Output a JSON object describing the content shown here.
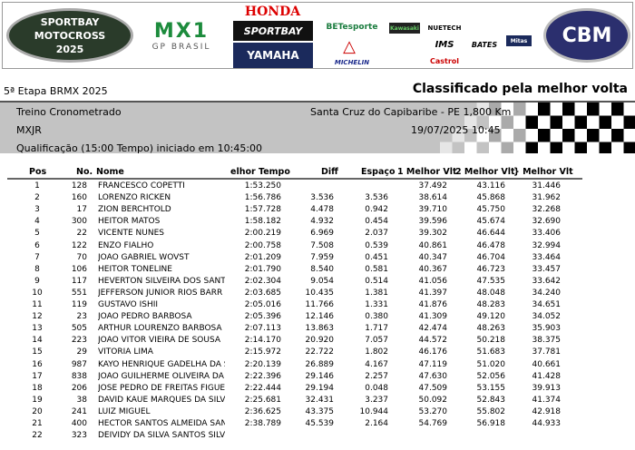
{
  "banner": {
    "logos": [
      {
        "id": "motocross",
        "text": "SPORTBAY MOTOCROSS 2025"
      },
      {
        "id": "mx1",
        "text": "MX1",
        "sub": "GP BRASIL"
      },
      {
        "id": "honda",
        "text": "HONDA"
      },
      {
        "id": "sportbay",
        "text": "SPORTBAY"
      },
      {
        "id": "yamaha",
        "text": "YAMAHA"
      },
      {
        "id": "betesporte",
        "text": "BETesporte"
      },
      {
        "id": "michelin",
        "text": "MICHELIN"
      },
      {
        "id": "kawasaki",
        "text": "Kawasaki"
      },
      {
        "id": "nuetech",
        "text": "NUETECH"
      },
      {
        "id": "ims",
        "text": "IMS"
      },
      {
        "id": "castrol",
        "text": "Castrol"
      },
      {
        "id": "bates",
        "text": "BATES"
      },
      {
        "id": "mitas",
        "text": "Mitas"
      },
      {
        "id": "cbm",
        "text": "CBM"
      }
    ]
  },
  "event": "5ª Etapa BRMX 2025",
  "report_title": "Classificado pela melhor volta",
  "info": {
    "session": "Treino Cronometrado",
    "location": "Santa Cruz do Capibaribe - PE 1,800 Km",
    "category": "MXJR",
    "datetime": "19/07/2025 10:45",
    "qualification": "Qualificação (15:00 Tempo) iniciado em 10:45:00"
  },
  "columns": {
    "pos": "Pos",
    "no": "No.",
    "name": "Nome",
    "best": "elhor Tempo",
    "diff": "Diff",
    "gap": "Espaço",
    "l1": "1 Melhor Vlt",
    "l2": "2 Melhor Vlt",
    "l3": "} Melhor Vlt"
  },
  "rows": [
    {
      "pos": "1",
      "no": "128",
      "name": "FRANCESCO COPETTI",
      "best": "1:53.250",
      "diff": "",
      "gap": "",
      "l1": "37.492",
      "l2": "43.116",
      "l3": "31.446"
    },
    {
      "pos": "2",
      "no": "160",
      "name": "LORENZO RICKEN",
      "best": "1:56.786",
      "diff": "3.536",
      "gap": "3.536",
      "l1": "38.614",
      "l2": "45.868",
      "l3": "31.962"
    },
    {
      "pos": "3",
      "no": "17",
      "name": "ZION BERCHTOLD",
      "best": "1:57.728",
      "diff": "4.478",
      "gap": "0.942",
      "l1": "39.710",
      "l2": "45.750",
      "l3": "32.268"
    },
    {
      "pos": "4",
      "no": "300",
      "name": "HEITOR  MATOS",
      "best": "1:58.182",
      "diff": "4.932",
      "gap": "0.454",
      "l1": "39.596",
      "l2": "45.674",
      "l3": "32.690"
    },
    {
      "pos": "5",
      "no": "22",
      "name": "VICENTE NUNES",
      "best": "2:00.219",
      "diff": "6.969",
      "gap": "2.037",
      "l1": "39.302",
      "l2": "46.644",
      "l3": "33.406"
    },
    {
      "pos": "6",
      "no": "122",
      "name": "ENZO FIALHO",
      "best": "2:00.758",
      "diff": "7.508",
      "gap": "0.539",
      "l1": "40.861",
      "l2": "46.478",
      "l3": "32.994"
    },
    {
      "pos": "7",
      "no": "70",
      "name": "JOÃO GABRIEL WOVST",
      "best": "2:01.209",
      "diff": "7.959",
      "gap": "0.451",
      "l1": "40.347",
      "l2": "46.704",
      "l3": "33.464"
    },
    {
      "pos": "8",
      "no": "106",
      "name": "HEITOR TONELINE",
      "best": "2:01.790",
      "diff": "8.540",
      "gap": "0.581",
      "l1": "40.367",
      "l2": "46.723",
      "l3": "33.457"
    },
    {
      "pos": "9",
      "no": "117",
      "name": "HEVERTON SILVEIRA DOS SANT",
      "best": "2:02.304",
      "diff": "9.054",
      "gap": "0.514",
      "l1": "41.056",
      "l2": "47.535",
      "l3": "33.642"
    },
    {
      "pos": "10",
      "no": "551",
      "name": "JEFFERSON JÚNIOR RIOS BARR",
      "best": "2:03.685",
      "diff": "10.435",
      "gap": "1.381",
      "l1": "41.397",
      "l2": "48.048",
      "l3": "34.240"
    },
    {
      "pos": "11",
      "no": "119",
      "name": "GUSTAVO ISHII",
      "best": "2:05.016",
      "diff": "11.766",
      "gap": "1.331",
      "l1": "41.876",
      "l2": "48.283",
      "l3": "34.651"
    },
    {
      "pos": "12",
      "no": "23",
      "name": "JOÃO PEDRO BARBOSA",
      "best": "2:05.396",
      "diff": "12.146",
      "gap": "0.380",
      "l1": "41.309",
      "l2": "49.120",
      "l3": "34.052"
    },
    {
      "pos": "13",
      "no": "505",
      "name": "ARTHUR LOURENZO BARBOSA F",
      "best": "2:07.113",
      "diff": "13.863",
      "gap": "1.717",
      "l1": "42.474",
      "l2": "48.263",
      "l3": "35.903"
    },
    {
      "pos": "14",
      "no": "223",
      "name": "JOÃO VITOR VIEIRA DE SOUSA",
      "best": "2:14.170",
      "diff": "20.920",
      "gap": "7.057",
      "l1": "44.572",
      "l2": "50.218",
      "l3": "38.375"
    },
    {
      "pos": "15",
      "no": "29",
      "name": "VITÓRIA LIMA",
      "best": "2:15.972",
      "diff": "22.722",
      "gap": "1.802",
      "l1": "46.176",
      "l2": "51.683",
      "l3": "37.781"
    },
    {
      "pos": "16",
      "no": "987",
      "name": "KAYO HENRIQUE GADELHA DA S",
      "best": "2:20.139",
      "diff": "26.889",
      "gap": "4.167",
      "l1": "47.119",
      "l2": "51.020",
      "l3": "40.661"
    },
    {
      "pos": "17",
      "no": "838",
      "name": "JOÃO GUILHERME OLIVEIRA DA",
      "best": "2:22.396",
      "diff": "29.146",
      "gap": "2.257",
      "l1": "47.630",
      "l2": "52.056",
      "l3": "41.428"
    },
    {
      "pos": "18",
      "no": "206",
      "name": "JOSÉ PEDRO DE FREITAS FIGUE",
      "best": "2:22.444",
      "diff": "29.194",
      "gap": "0.048",
      "l1": "47.509",
      "l2": "53.155",
      "l3": "39.913"
    },
    {
      "pos": "19",
      "no": "38",
      "name": "DAVID KAUE MARQUES DA SILV",
      "best": "2:25.681",
      "diff": "32.431",
      "gap": "3.237",
      "l1": "50.092",
      "l2": "52.843",
      "l3": "41.374"
    },
    {
      "pos": "20",
      "no": "241",
      "name": "LUIZ MIGUEL",
      "best": "2:36.625",
      "diff": "43.375",
      "gap": "10.944",
      "l1": "53.270",
      "l2": "55.802",
      "l3": "42.918"
    },
    {
      "pos": "21",
      "no": "400",
      "name": "HECTOR SANTOS ALMEIDA SAN",
      "best": "2:38.789",
      "diff": "45.539",
      "gap": "2.164",
      "l1": "54.769",
      "l2": "56.918",
      "l3": "44.933"
    },
    {
      "pos": "22",
      "no": "323",
      "name": "DEIVIDY DA SILVA SANTOS SILV",
      "best": "",
      "diff": "",
      "gap": "",
      "l1": "",
      "l2": "",
      "l3": ""
    }
  ]
}
